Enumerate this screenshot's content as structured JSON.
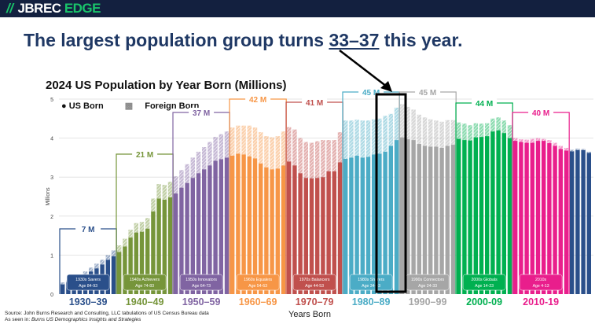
{
  "header": {
    "logo_part1": "JBREC",
    "logo_part2": "EDGE"
  },
  "headline": {
    "before": "The largest population group turns ",
    "highlight": "33–37",
    "after": " this year."
  },
  "source": {
    "line1": "Source: John Burns Research and Consulting, LLC tabulations of US Census Bureau data",
    "line2_prefix": "As seen in: ",
    "line2_title": "Burns US Demographics Insights and Strategies"
  },
  "chart_data": {
    "type": "bar",
    "stacked": true,
    "title": "2024 US Population by Year Born (Millions)",
    "xlabel": "Years Born",
    "ylabel": "Millions",
    "ylim": [
      0,
      5
    ],
    "yticks": [
      "0",
      "1",
      "2",
      "3",
      "4",
      "5"
    ],
    "legend": {
      "us": "US Born",
      "foreign": "Foreign Born",
      "placement": "top-left"
    },
    "first_year": 1930,
    "last_year": 2023,
    "series": [
      {
        "name": "US Born",
        "values": [
          0.25,
          0.3,
          0.36,
          0.43,
          0.5,
          0.58,
          0.66,
          0.76,
          0.88,
          0.97,
          1.08,
          1.22,
          1.45,
          1.58,
          1.6,
          1.68,
          2.12,
          2.45,
          2.42,
          2.48,
          2.58,
          2.73,
          2.85,
          2.98,
          3.1,
          3.2,
          3.3,
          3.42,
          3.46,
          3.5,
          3.55,
          3.6,
          3.58,
          3.53,
          3.48,
          3.35,
          3.25,
          3.2,
          3.22,
          3.3,
          3.4,
          3.3,
          3.1,
          2.98,
          2.97,
          2.98,
          3.0,
          3.15,
          3.15,
          3.38,
          3.47,
          3.5,
          3.55,
          3.5,
          3.52,
          3.58,
          3.6,
          3.65,
          3.8,
          3.95,
          4.02,
          3.97,
          3.95,
          3.85,
          3.8,
          3.78,
          3.78,
          3.75,
          3.8,
          3.83,
          3.98,
          3.95,
          3.94,
          4.02,
          4.03,
          4.05,
          4.17,
          4.2,
          4.13,
          4.0,
          3.93,
          3.9,
          3.88,
          3.88,
          3.93,
          3.93,
          3.87,
          3.8,
          3.72,
          3.68,
          3.66,
          3.69,
          3.69,
          3.62
        ]
      },
      {
        "name": "Foreign Born",
        "values": [
          0.05,
          0.05,
          0.06,
          0.07,
          0.08,
          0.1,
          0.12,
          0.12,
          0.12,
          0.15,
          0.17,
          0.2,
          0.2,
          0.24,
          0.25,
          0.27,
          0.33,
          0.37,
          0.38,
          0.4,
          0.44,
          0.45,
          0.48,
          0.52,
          0.55,
          0.57,
          0.6,
          0.61,
          0.64,
          0.67,
          0.72,
          0.72,
          0.74,
          0.79,
          0.79,
          0.8,
          0.8,
          0.82,
          0.83,
          0.87,
          0.88,
          0.92,
          0.9,
          0.92,
          0.91,
          0.94,
          0.95,
          0.8,
          0.8,
          0.77,
          0.98,
          0.95,
          0.92,
          0.95,
          0.93,
          0.9,
          0.9,
          0.92,
          0.82,
          0.83,
          0.85,
          0.83,
          0.78,
          0.75,
          0.73,
          0.7,
          0.67,
          0.67,
          0.66,
          0.63,
          0.42,
          0.42,
          0.39,
          0.36,
          0.34,
          0.33,
          0.33,
          0.33,
          0.32,
          0.33,
          0.07,
          0.07,
          0.08,
          0.1,
          0.07,
          0.05,
          0.08,
          0.08,
          0.08,
          0.07,
          0.04,
          0.04,
          0.03,
          0.03
        ]
      }
    ],
    "groups": [
      {
        "axis_label": "1930–39",
        "total": "7 M",
        "tag": "1930s Savers",
        "age": "Age 84-93",
        "color": "#2a4f8a"
      },
      {
        "axis_label": "1940–49",
        "total": "21 M",
        "tag": "1940s Achievers",
        "age": "Age 74-83",
        "color": "#76953a"
      },
      {
        "axis_label": "1950–59",
        "total": "37 M",
        "tag": "1950s Innovators",
        "age": "Age 64-73",
        "color": "#8064a2"
      },
      {
        "axis_label": "1960–69",
        "total": "42 M",
        "tag": "1960s Equalers",
        "age": "Age 54-63",
        "color": "#f79646"
      },
      {
        "axis_label": "1970–79",
        "total": "41 M",
        "tag": "1970s Balancers",
        "age": "Age 44-53",
        "color": "#c0504d"
      },
      {
        "axis_label": "1980–89",
        "total": "45 M",
        "tag": "1980s Sharers",
        "age": "Age 34-43",
        "color": "#4bacc6"
      },
      {
        "axis_label": "1990–99",
        "total": "45 M",
        "tag": "1990s Connectors",
        "age": "Age 24-33",
        "color": "#a6a6a6"
      },
      {
        "axis_label": "2000-09",
        "total": "44 M",
        "tag": "2000s Globals",
        "age": "Age 14-23",
        "color": "#00b050"
      },
      {
        "axis_label": "2010-19",
        "total": "40 M",
        "tag": "2010s",
        "age": "Age 4-13",
        "color": "#e91e8c"
      },
      {
        "color": "#2a4f8a"
      }
    ],
    "highlight": {
      "years": "1987–1991"
    }
  }
}
